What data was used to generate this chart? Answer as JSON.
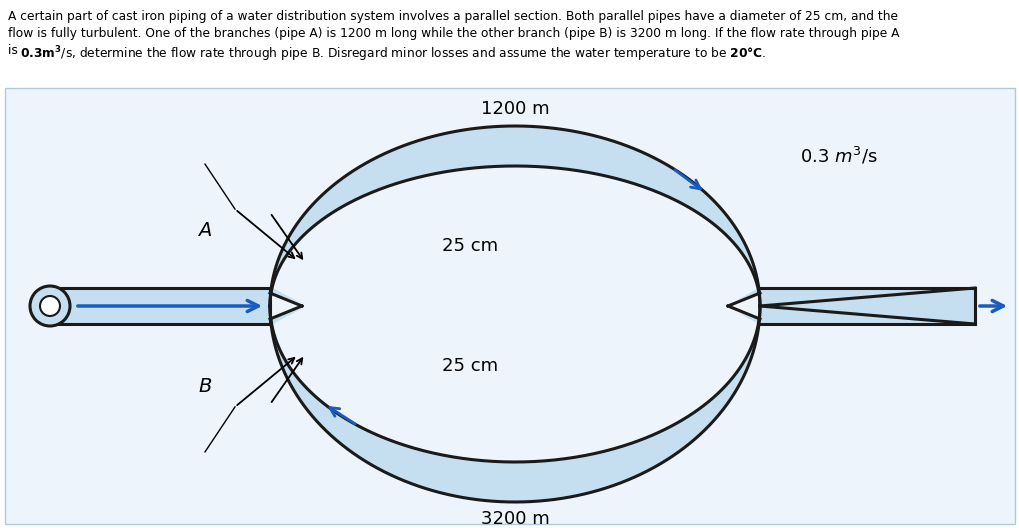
{
  "bg_color": "#eef4fb",
  "pipe_fill": "#c5dff0",
  "pipe_edge": "#1a1a1a",
  "pipe_lw": 2.2,
  "arrow_color": "#1a5bbf",
  "fig_width": 10.2,
  "fig_height": 5.28,
  "header_line1": "A certain part of cast iron piping of a water distribution system involves a parallel section. Both parallel pipes have a diameter of 25 cm, and the",
  "header_line2": "flow is fully turbulent. One of the branches (pipe A) is 1200 m long while the other branch (pipe B) is 3200 m long. If the flow rate through pipe A",
  "header_line3_plain": "is ",
  "header_line3_bold": "0.3m³",
  "header_line3_mid": "/s, determine the flow rate through pipe B. Disregard minor losses and assume the water temperature to be ",
  "header_line3_bold2": "20°C",
  "header_line3_end": ".",
  "label_1200": "1200 m",
  "label_3200": "3200 m",
  "label_A": "A",
  "label_B": "B",
  "label_25cm_top": "25 cm",
  "label_25cm_bot": "25 cm",
  "label_flow": "0.3 m³/s",
  "header_fontsize": 8.8,
  "diagram_label_fontsize": 13,
  "flow_label_fontsize": 13
}
